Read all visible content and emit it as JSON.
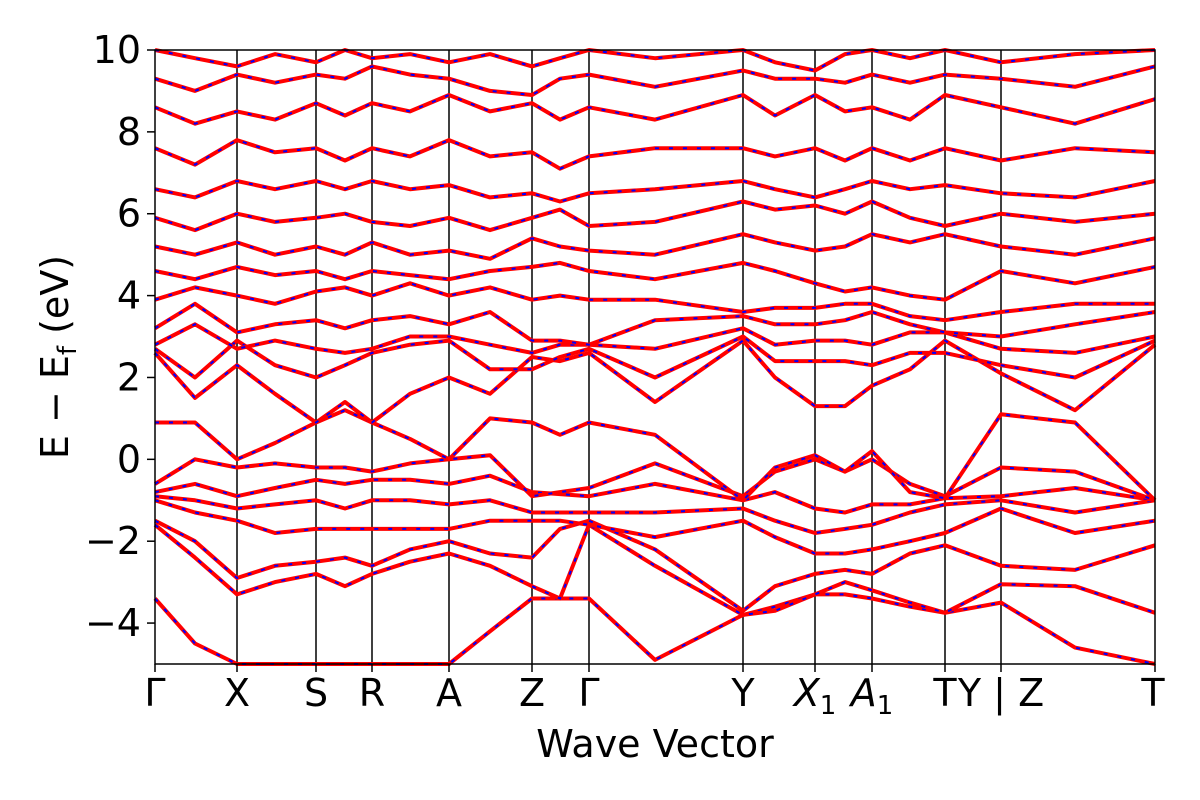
{
  "chart_data": {
    "type": "line",
    "title": "",
    "xlabel": "Wave Vector",
    "ylabel": "E − E",
    "ylabel_sub": "f",
    "ylabel_unit": " (eV)",
    "ylim": [
      -5,
      10
    ],
    "yticks": [
      -4,
      -2,
      0,
      2,
      4,
      6,
      8,
      10
    ],
    "xlim": [
      0,
      1
    ],
    "kpoints": [
      {
        "x": 0.0,
        "label": "Γ"
      },
      {
        "x": 0.082,
        "label": "X"
      },
      {
        "x": 0.161,
        "label": "S"
      },
      {
        "x": 0.217,
        "label": "R"
      },
      {
        "x": 0.294,
        "label": "A"
      },
      {
        "x": 0.377,
        "label": "Z"
      },
      {
        "x": 0.434,
        "label": "Γ"
      },
      {
        "x": 0.588,
        "label": "Y"
      },
      {
        "x": 0.66,
        "label": "X",
        "sub": "1",
        "italic": true
      },
      {
        "x": 0.717,
        "label": "A",
        "sub": "1",
        "italic": true
      },
      {
        "x": 0.79,
        "label": "T"
      },
      {
        "x": 0.846,
        "label": "Y | Z"
      },
      {
        "x": 1.0,
        "label": "T"
      }
    ],
    "grid": false,
    "series": [
      {
        "color": "#ff0000",
        "style": "solid",
        "x": [
          0.0,
          0.04,
          0.082,
          0.12,
          0.161,
          0.19,
          0.217,
          0.255,
          0.294,
          0.335,
          0.377,
          0.405,
          0.434,
          0.5,
          0.588,
          0.62,
          0.66,
          0.69,
          0.717,
          0.755,
          0.79,
          0.846,
          0.92,
          1.0
        ],
        "y": [
          -3.4,
          -4.5,
          -5.0,
          -5.0,
          -5.0,
          -5.0,
          -5.0,
          -5.0,
          -5.0,
          -4.2,
          -3.4,
          -3.4,
          -3.4,
          -4.9,
          -3.8,
          -3.6,
          -3.3,
          -3.3,
          -3.4,
          -3.6,
          -3.75,
          -3.5,
          -4.6,
          -5.0
        ]
      },
      {
        "color": "#ff0000",
        "style": "solid",
        "x": [
          0.0,
          0.04,
          0.082,
          0.12,
          0.161,
          0.19,
          0.217,
          0.255,
          0.294,
          0.335,
          0.377,
          0.405,
          0.434,
          0.5,
          0.588,
          0.62,
          0.66,
          0.69,
          0.717,
          0.755,
          0.79,
          0.846,
          0.92,
          1.0
        ],
        "y": [
          -1.6,
          -2.4,
          -3.3,
          -3.0,
          -2.8,
          -3.1,
          -2.8,
          -2.5,
          -2.3,
          -2.6,
          -3.1,
          -3.4,
          -1.6,
          -2.6,
          -3.8,
          -3.7,
          -3.3,
          -3.0,
          -3.2,
          -3.5,
          -3.75,
          -3.05,
          -3.1,
          -3.75
        ]
      },
      {
        "color": "#ff0000",
        "style": "solid",
        "x": [
          0.0,
          0.04,
          0.082,
          0.12,
          0.161,
          0.19,
          0.217,
          0.255,
          0.294,
          0.335,
          0.377,
          0.405,
          0.434,
          0.5,
          0.588,
          0.62,
          0.66,
          0.69,
          0.717,
          0.755,
          0.79,
          0.846,
          0.92,
          1.0
        ],
        "y": [
          -1.5,
          -2.0,
          -2.9,
          -2.6,
          -2.5,
          -2.4,
          -2.6,
          -2.2,
          -2.0,
          -2.3,
          -2.4,
          -1.7,
          -1.5,
          -2.2,
          -3.7,
          -3.1,
          -2.8,
          -2.7,
          -2.8,
          -2.3,
          -2.1,
          -2.6,
          -2.7,
          -2.1
        ]
      },
      {
        "color": "#ff0000",
        "style": "solid",
        "x": [
          0.0,
          0.04,
          0.082,
          0.12,
          0.161,
          0.19,
          0.217,
          0.255,
          0.294,
          0.335,
          0.377,
          0.405,
          0.434,
          0.5,
          0.588,
          0.62,
          0.66,
          0.69,
          0.717,
          0.755,
          0.79,
          0.846,
          0.92,
          1.0
        ],
        "y": [
          -1.0,
          -1.3,
          -1.5,
          -1.8,
          -1.7,
          -1.7,
          -1.7,
          -1.7,
          -1.7,
          -1.5,
          -1.5,
          -1.5,
          -1.6,
          -1.9,
          -1.5,
          -1.9,
          -2.3,
          -2.3,
          -2.2,
          -2.0,
          -1.8,
          -1.2,
          -1.8,
          -1.5
        ]
      },
      {
        "color": "#ff0000",
        "style": "solid",
        "x": [
          0.0,
          0.04,
          0.082,
          0.12,
          0.161,
          0.19,
          0.217,
          0.255,
          0.294,
          0.335,
          0.377,
          0.405,
          0.434,
          0.5,
          0.588,
          0.62,
          0.66,
          0.69,
          0.717,
          0.755,
          0.79,
          0.846,
          0.92,
          1.0
        ],
        "y": [
          -0.9,
          -1.0,
          -1.2,
          -1.1,
          -1.0,
          -1.2,
          -1.0,
          -1.0,
          -1.1,
          -1.0,
          -1.3,
          -1.3,
          -1.3,
          -1.3,
          -1.2,
          -1.5,
          -1.8,
          -1.7,
          -1.6,
          -1.3,
          -1.1,
          -1.0,
          -1.3,
          -1.0
        ]
      },
      {
        "color": "#ff0000",
        "style": "solid",
        "x": [
          0.0,
          0.04,
          0.082,
          0.12,
          0.161,
          0.19,
          0.217,
          0.255,
          0.294,
          0.335,
          0.377,
          0.405,
          0.434,
          0.5,
          0.588,
          0.62,
          0.66,
          0.69,
          0.717,
          0.755,
          0.79,
          0.846,
          0.92,
          1.0
        ],
        "y": [
          -0.8,
          -0.6,
          -0.9,
          -0.7,
          -0.5,
          -0.6,
          -0.5,
          -0.5,
          -0.6,
          -0.4,
          -0.8,
          -0.85,
          -0.9,
          -0.6,
          -1.0,
          -0.8,
          -1.2,
          -1.3,
          -1.1,
          -1.1,
          -0.95,
          -0.9,
          -0.7,
          -1.0
        ]
      },
      {
        "color": "#ff0000",
        "style": "solid",
        "x": [
          0.0,
          0.04,
          0.082,
          0.12,
          0.161,
          0.19,
          0.217,
          0.255,
          0.294,
          0.335,
          0.377,
          0.405,
          0.434,
          0.5,
          0.588,
          0.62,
          0.66,
          0.69,
          0.717,
          0.755,
          0.79,
          0.846,
          0.92,
          1.0
        ],
        "y": [
          -0.6,
          0.0,
          -0.2,
          -0.1,
          -0.2,
          -0.2,
          -0.3,
          -0.1,
          0.0,
          0.1,
          -0.9,
          -0.8,
          -0.7,
          -0.1,
          -0.9,
          -0.3,
          0.0,
          -0.3,
          0.0,
          -0.6,
          -0.9,
          -0.2,
          -0.3,
          -1.0
        ]
      },
      {
        "color": "#ff0000",
        "style": "solid",
        "x": [
          0.0,
          0.04,
          0.082,
          0.12,
          0.161,
          0.19,
          0.217,
          0.255,
          0.294,
          0.335,
          0.377,
          0.405,
          0.434,
          0.5,
          0.588,
          0.62,
          0.66,
          0.69,
          0.717,
          0.755,
          0.79,
          0.846,
          0.92,
          1.0
        ],
        "y": [
          0.9,
          0.9,
          0.0,
          0.4,
          0.9,
          1.2,
          0.9,
          0.5,
          0.0,
          1.0,
          0.9,
          0.6,
          0.9,
          0.6,
          -1.0,
          -0.2,
          0.1,
          -0.3,
          0.2,
          -0.8,
          -0.95,
          1.1,
          0.9,
          -1.0
        ]
      },
      {
        "color": "#ff0000",
        "style": "solid",
        "x": [
          0.0,
          0.04,
          0.082,
          0.12,
          0.161,
          0.19,
          0.217,
          0.255,
          0.294,
          0.335,
          0.377,
          0.405,
          0.434,
          0.5,
          0.588,
          0.62,
          0.66,
          0.69,
          0.717,
          0.755,
          0.79,
          0.846,
          0.92,
          1.0
        ],
        "y": [
          2.6,
          1.5,
          2.3,
          1.6,
          0.9,
          1.4,
          0.9,
          1.6,
          2.0,
          1.6,
          2.5,
          2.4,
          2.6,
          1.4,
          2.9,
          2.0,
          1.3,
          1.3,
          1.8,
          2.2,
          2.9,
          2.1,
          1.2,
          2.8
        ]
      },
      {
        "color": "#ff0000",
        "style": "solid",
        "x": [
          0.0,
          0.04,
          0.082,
          0.12,
          0.161,
          0.19,
          0.217,
          0.255,
          0.294,
          0.335,
          0.377,
          0.405,
          0.434,
          0.5,
          0.588,
          0.62,
          0.66,
          0.69,
          0.717,
          0.755,
          0.79,
          0.846,
          0.92,
          1.0
        ],
        "y": [
          2.7,
          2.0,
          2.9,
          2.3,
          2.0,
          2.3,
          2.6,
          2.8,
          2.9,
          2.2,
          2.2,
          2.5,
          2.7,
          2.0,
          3.0,
          2.4,
          2.4,
          2.4,
          2.3,
          2.6,
          2.6,
          2.3,
          2.0,
          2.9
        ]
      },
      {
        "color": "#ff0000",
        "style": "solid",
        "x": [
          0.0,
          0.04,
          0.082,
          0.12,
          0.161,
          0.19,
          0.217,
          0.255,
          0.294,
          0.335,
          0.377,
          0.405,
          0.434,
          0.5,
          0.588,
          0.62,
          0.66,
          0.69,
          0.717,
          0.755,
          0.79,
          0.846,
          0.92,
          1.0
        ],
        "y": [
          2.8,
          3.3,
          2.7,
          2.9,
          2.7,
          2.6,
          2.7,
          3.0,
          3.0,
          2.8,
          2.6,
          2.8,
          2.8,
          2.7,
          3.2,
          2.8,
          2.9,
          2.9,
          2.8,
          3.1,
          3.1,
          2.7,
          2.6,
          3.0
        ]
      },
      {
        "color": "#ff0000",
        "style": "solid",
        "x": [
          0.0,
          0.04,
          0.082,
          0.12,
          0.161,
          0.19,
          0.217,
          0.255,
          0.294,
          0.335,
          0.377,
          0.405,
          0.434,
          0.5,
          0.588,
          0.62,
          0.66,
          0.69,
          0.717,
          0.755,
          0.79,
          0.846,
          0.92,
          1.0
        ],
        "y": [
          3.2,
          3.8,
          3.1,
          3.3,
          3.4,
          3.2,
          3.4,
          3.5,
          3.3,
          3.6,
          2.9,
          2.9,
          2.8,
          3.4,
          3.5,
          3.3,
          3.3,
          3.4,
          3.6,
          3.3,
          3.1,
          3.0,
          3.3,
          3.6
        ]
      },
      {
        "color": "#ff0000",
        "style": "solid",
        "x": [
          0.0,
          0.04,
          0.082,
          0.12,
          0.161,
          0.19,
          0.217,
          0.255,
          0.294,
          0.335,
          0.377,
          0.405,
          0.434,
          0.5,
          0.588,
          0.62,
          0.66,
          0.69,
          0.717,
          0.755,
          0.79,
          0.846,
          0.92,
          1.0
        ],
        "y": [
          3.9,
          4.2,
          4.0,
          3.8,
          4.1,
          4.2,
          4.0,
          4.3,
          4.0,
          4.2,
          3.9,
          4.0,
          3.9,
          3.9,
          3.6,
          3.7,
          3.7,
          3.8,
          3.8,
          3.5,
          3.4,
          3.6,
          3.8,
          3.8
        ]
      },
      {
        "color": "#ff0000",
        "style": "solid",
        "x": [
          0.0,
          0.04,
          0.082,
          0.12,
          0.161,
          0.19,
          0.217,
          0.255,
          0.294,
          0.335,
          0.377,
          0.405,
          0.434,
          0.5,
          0.588,
          0.62,
          0.66,
          0.69,
          0.717,
          0.755,
          0.79,
          0.846,
          0.92,
          1.0
        ],
        "y": [
          4.6,
          4.4,
          4.7,
          4.5,
          4.6,
          4.4,
          4.6,
          4.5,
          4.4,
          4.6,
          4.7,
          4.8,
          4.6,
          4.4,
          4.8,
          4.6,
          4.3,
          4.1,
          4.2,
          4.0,
          3.9,
          4.6,
          4.3,
          4.7
        ]
      },
      {
        "color": "#ff0000",
        "style": "solid",
        "x": [
          0.0,
          0.04,
          0.082,
          0.12,
          0.161,
          0.19,
          0.217,
          0.255,
          0.294,
          0.335,
          0.377,
          0.405,
          0.434,
          0.5,
          0.588,
          0.62,
          0.66,
          0.69,
          0.717,
          0.755,
          0.79,
          0.846,
          0.92,
          1.0
        ],
        "y": [
          5.2,
          5.0,
          5.3,
          5.0,
          5.2,
          5.0,
          5.3,
          5.0,
          5.1,
          4.9,
          5.4,
          5.2,
          5.1,
          5.0,
          5.5,
          5.3,
          5.1,
          5.2,
          5.5,
          5.3,
          5.5,
          5.2,
          5.0,
          5.4
        ]
      },
      {
        "color": "#ff0000",
        "style": "solid",
        "x": [
          0.0,
          0.04,
          0.082,
          0.12,
          0.161,
          0.19,
          0.217,
          0.255,
          0.294,
          0.335,
          0.377,
          0.405,
          0.434,
          0.5,
          0.588,
          0.62,
          0.66,
          0.69,
          0.717,
          0.755,
          0.79,
          0.846,
          0.92,
          1.0
        ],
        "y": [
          5.9,
          5.6,
          6.0,
          5.8,
          5.9,
          6.0,
          5.8,
          5.7,
          5.9,
          5.6,
          5.9,
          6.1,
          5.7,
          5.8,
          6.3,
          6.1,
          6.2,
          6.0,
          6.3,
          5.9,
          5.7,
          6.0,
          5.8,
          6.0
        ]
      },
      {
        "color": "#ff0000",
        "style": "solid",
        "x": [
          0.0,
          0.04,
          0.082,
          0.12,
          0.161,
          0.19,
          0.217,
          0.255,
          0.294,
          0.335,
          0.377,
          0.405,
          0.434,
          0.5,
          0.588,
          0.62,
          0.66,
          0.69,
          0.717,
          0.755,
          0.79,
          0.846,
          0.92,
          1.0
        ],
        "y": [
          6.6,
          6.4,
          6.8,
          6.6,
          6.8,
          6.6,
          6.8,
          6.6,
          6.7,
          6.4,
          6.5,
          6.3,
          6.5,
          6.6,
          6.8,
          6.6,
          6.4,
          6.6,
          6.8,
          6.6,
          6.7,
          6.5,
          6.4,
          6.8
        ]
      },
      {
        "color": "#ff0000",
        "style": "solid",
        "x": [
          0.0,
          0.04,
          0.082,
          0.12,
          0.161,
          0.19,
          0.217,
          0.255,
          0.294,
          0.335,
          0.377,
          0.405,
          0.434,
          0.5,
          0.588,
          0.62,
          0.66,
          0.69,
          0.717,
          0.755,
          0.79,
          0.846,
          0.92,
          1.0
        ],
        "y": [
          7.6,
          7.2,
          7.8,
          7.5,
          7.6,
          7.3,
          7.6,
          7.4,
          7.8,
          7.4,
          7.5,
          7.1,
          7.4,
          7.6,
          7.6,
          7.4,
          7.6,
          7.3,
          7.6,
          7.3,
          7.6,
          7.3,
          7.6,
          7.5
        ]
      },
      {
        "color": "#ff0000",
        "style": "solid",
        "x": [
          0.0,
          0.04,
          0.082,
          0.12,
          0.161,
          0.19,
          0.217,
          0.255,
          0.294,
          0.335,
          0.377,
          0.405,
          0.434,
          0.5,
          0.588,
          0.62,
          0.66,
          0.69,
          0.717,
          0.755,
          0.79,
          0.846,
          0.92,
          1.0
        ],
        "y": [
          8.6,
          8.2,
          8.5,
          8.3,
          8.7,
          8.4,
          8.7,
          8.5,
          8.9,
          8.5,
          8.7,
          8.3,
          8.6,
          8.3,
          8.9,
          8.4,
          8.9,
          8.5,
          8.6,
          8.3,
          8.9,
          8.6,
          8.2,
          8.8
        ]
      },
      {
        "color": "#ff0000",
        "style": "solid",
        "x": [
          0.0,
          0.04,
          0.082,
          0.12,
          0.161,
          0.19,
          0.217,
          0.255,
          0.294,
          0.335,
          0.377,
          0.405,
          0.434,
          0.5,
          0.588,
          0.62,
          0.66,
          0.69,
          0.717,
          0.755,
          0.79,
          0.846,
          0.92,
          1.0
        ],
        "y": [
          9.3,
          9.0,
          9.4,
          9.2,
          9.4,
          9.3,
          9.6,
          9.4,
          9.3,
          9.0,
          8.9,
          9.3,
          9.4,
          9.1,
          9.5,
          9.3,
          9.3,
          9.2,
          9.4,
          9.2,
          9.4,
          9.3,
          9.1,
          9.6
        ]
      },
      {
        "color": "#ff0000",
        "style": "solid",
        "x": [
          0.0,
          0.04,
          0.082,
          0.12,
          0.161,
          0.19,
          0.217,
          0.255,
          0.294,
          0.335,
          0.377,
          0.405,
          0.434,
          0.5,
          0.588,
          0.62,
          0.66,
          0.69,
          0.717,
          0.755,
          0.79,
          0.846,
          0.92,
          1.0
        ],
        "y": [
          10.0,
          9.8,
          9.6,
          9.9,
          9.7,
          10.0,
          9.8,
          9.9,
          9.7,
          9.9,
          9.6,
          9.8,
          10.0,
          9.8,
          10.0,
          9.7,
          9.5,
          9.9,
          10.0,
          9.8,
          10.0,
          9.7,
          9.9,
          10.0
        ]
      }
    ]
  }
}
